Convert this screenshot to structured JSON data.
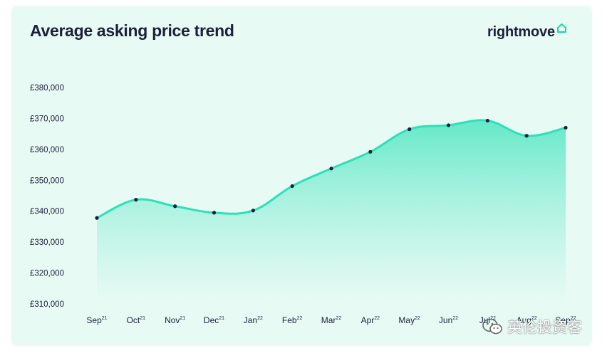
{
  "title": "Average asking price trend",
  "brand": {
    "name": "rightmove",
    "icon": "house-outline-icon",
    "accent": "#17d6aa"
  },
  "watermark": {
    "text": "英伦投资客",
    "icon": "wechat-icon"
  },
  "colors": {
    "card_background": "#e7faf4",
    "line": "#2de0b8",
    "fill_top": "#5ee8c6",
    "marker": "#1c1f3a",
    "text": "#1c1f3a"
  },
  "chart_data": {
    "type": "area",
    "title": "Average asking price trend",
    "xlabel": "",
    "ylabel": "",
    "categories": [
      {
        "month": "Sep",
        "year": "21"
      },
      {
        "month": "Oct",
        "year": "21"
      },
      {
        "month": "Nov",
        "year": "21"
      },
      {
        "month": "Dec",
        "year": "21"
      },
      {
        "month": "Jan",
        "year": "22"
      },
      {
        "month": "Feb",
        "year": "22"
      },
      {
        "month": "Mar",
        "year": "22"
      },
      {
        "month": "Apr",
        "year": "22"
      },
      {
        "month": "May",
        "year": "22"
      },
      {
        "month": "Jun",
        "year": "22"
      },
      {
        "month": "Jul",
        "year": "22"
      },
      {
        "month": "Aug",
        "year": "22"
      },
      {
        "month": "Sep",
        "year": "22"
      }
    ],
    "values": [
      337800,
      343700,
      341600,
      339500,
      340200,
      348100,
      353800,
      359200,
      366500,
      367800,
      369300,
      364400,
      367000
    ],
    "ylim": [
      310000,
      380000
    ],
    "yticks": [
      "£310,000",
      "£320,000",
      "£330,000",
      "£340,000",
      "£350,000",
      "£360,000",
      "£370,000",
      "£380,000"
    ],
    "ytick_values": [
      310000,
      320000,
      330000,
      340000,
      350000,
      360000,
      370000,
      380000
    ],
    "grid": false,
    "legend": "none"
  }
}
